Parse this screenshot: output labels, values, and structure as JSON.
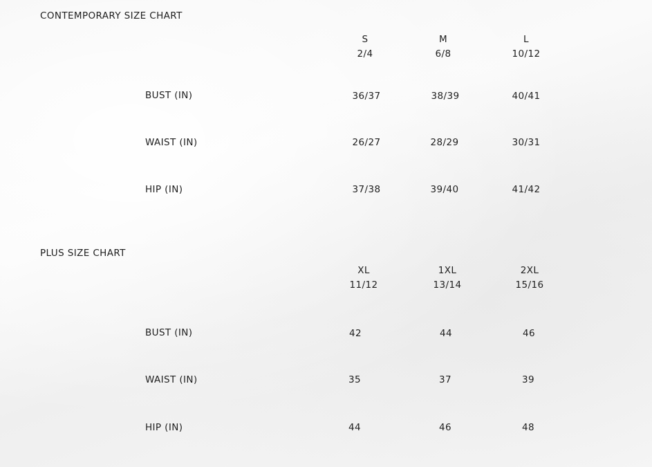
{
  "contemporary": {
    "title": "CONTEMPORARY SIZE CHART",
    "sizes": [
      {
        "label": "S",
        "numeric": "2/4"
      },
      {
        "label": "M",
        "numeric": "6/8"
      },
      {
        "label": "L",
        "numeric": "10/12"
      }
    ],
    "rows": [
      {
        "label": "BUST (IN)",
        "values": [
          "36/37",
          "38/39",
          "40/41"
        ]
      },
      {
        "label": "WAIST (IN)",
        "values": [
          "26/27",
          "28/29",
          "30/31"
        ]
      },
      {
        "label": "HIP (IN)",
        "values": [
          "37/38",
          "39/40",
          "41/42"
        ]
      }
    ]
  },
  "plus": {
    "title": "PLUS SIZE CHART",
    "sizes": [
      {
        "label": "XL",
        "numeric": "11/12"
      },
      {
        "label": "1XL",
        "numeric": "13/14"
      },
      {
        "label": "2XL",
        "numeric": "15/16"
      }
    ],
    "rows": [
      {
        "label": "BUST (IN)",
        "values": [
          "42",
          "44",
          "46"
        ]
      },
      {
        "label": "WAIST (IN)",
        "values": [
          "35",
          "37",
          "39"
        ]
      },
      {
        "label": "HIP (IN)",
        "values": [
          "44",
          "46",
          "48"
        ]
      }
    ]
  }
}
